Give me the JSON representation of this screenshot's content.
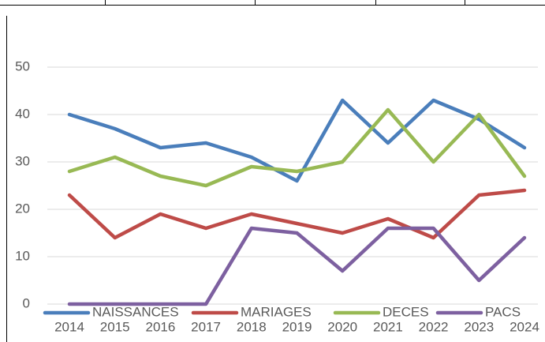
{
  "chart_data": {
    "type": "line",
    "categories": [
      "2014",
      "2015",
      "2016",
      "2017",
      "2018",
      "2019",
      "2020",
      "2021",
      "2022",
      "2023",
      "2024"
    ],
    "series": [
      {
        "name": "NAISSANCES",
        "color": "#4a7ebb",
        "values": [
          40,
          37,
          33,
          34,
          31,
          26,
          43,
          34,
          43,
          39,
          33
        ]
      },
      {
        "name": "MARIAGES",
        "color": "#be4b48",
        "values": [
          23,
          14,
          19,
          16,
          19,
          17,
          15,
          18,
          14,
          23,
          24
        ]
      },
      {
        "name": "DECES",
        "color": "#98b954",
        "values": [
          28,
          31,
          27,
          25,
          29,
          28,
          30,
          41,
          30,
          40,
          27
        ]
      },
      {
        "name": "PACS",
        "color": "#7d60a0",
        "values": [
          0,
          0,
          0,
          0,
          16,
          15,
          7,
          16,
          16,
          5,
          14
        ]
      }
    ],
    "ylim": [
      0,
      50
    ],
    "yticks": [
      0,
      10,
      20,
      30,
      40,
      50
    ],
    "grid": true,
    "legend": "bottom"
  }
}
